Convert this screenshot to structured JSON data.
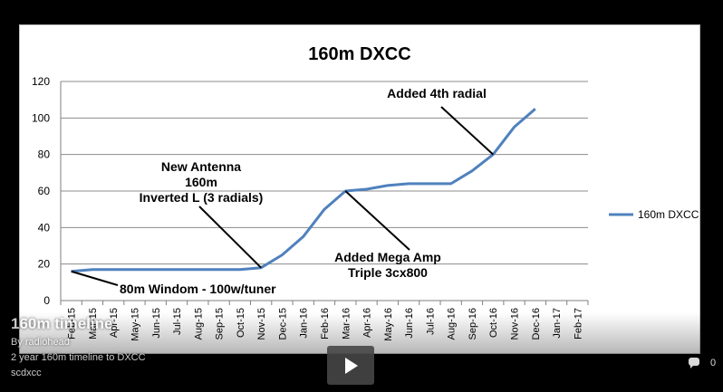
{
  "chart_data": {
    "type": "line",
    "title": "160m DXCC",
    "xlabel": "",
    "ylabel": "",
    "ylim": [
      0,
      120
    ],
    "yticks": [
      0,
      20,
      40,
      60,
      80,
      100,
      120
    ],
    "grid": true,
    "legend_position": "right",
    "categories": [
      "Feb-15",
      "Mar-15",
      "Apr-15",
      "May-15",
      "Jun-15",
      "Jul-15",
      "Aug-15",
      "Sep-15",
      "Oct-15",
      "Nov-15",
      "Dec-15",
      "Jan-16",
      "Feb-16",
      "Mar-16",
      "Apr-16",
      "May-16",
      "Jun-16",
      "Jul-16",
      "Aug-16",
      "Sep-16",
      "Oct-16",
      "Nov-16",
      "Dec-16",
      "Jan-17",
      "Feb-17"
    ],
    "series": [
      {
        "name": "160m DXCC",
        "color": "#4f81bd",
        "values": [
          16,
          17,
          17,
          17,
          17,
          17,
          17,
          17,
          17,
          18,
          25,
          35,
          50,
          60,
          61,
          63,
          64,
          64,
          64,
          71,
          80,
          95,
          105,
          null,
          null
        ]
      }
    ],
    "annotations": [
      {
        "lines": [
          "80m Windom - 100w/tuner"
        ],
        "point": {
          "x": "Feb-15",
          "y": 16
        }
      },
      {
        "lines": [
          "New Antenna",
          "160m",
          "Inverted L (3 radials)"
        ],
        "point": {
          "x": "Nov-15",
          "y": 18
        }
      },
      {
        "lines": [
          "Added Mega Amp",
          "Triple 3cx800"
        ],
        "point": {
          "x": "Mar-16",
          "y": 60
        }
      },
      {
        "lines": [
          "Added 4th radial"
        ],
        "point": {
          "x": "Oct-16",
          "y": 80
        }
      }
    ]
  },
  "video": {
    "title": "160m timeline",
    "author": "By radiohead",
    "description": "2 year 160m timeline to DXCC",
    "tag": "scdxcc",
    "comment_count": "0"
  },
  "colors": {
    "line": "#4f81bd",
    "grid": "#8c8c8c",
    "background": "#000000"
  }
}
